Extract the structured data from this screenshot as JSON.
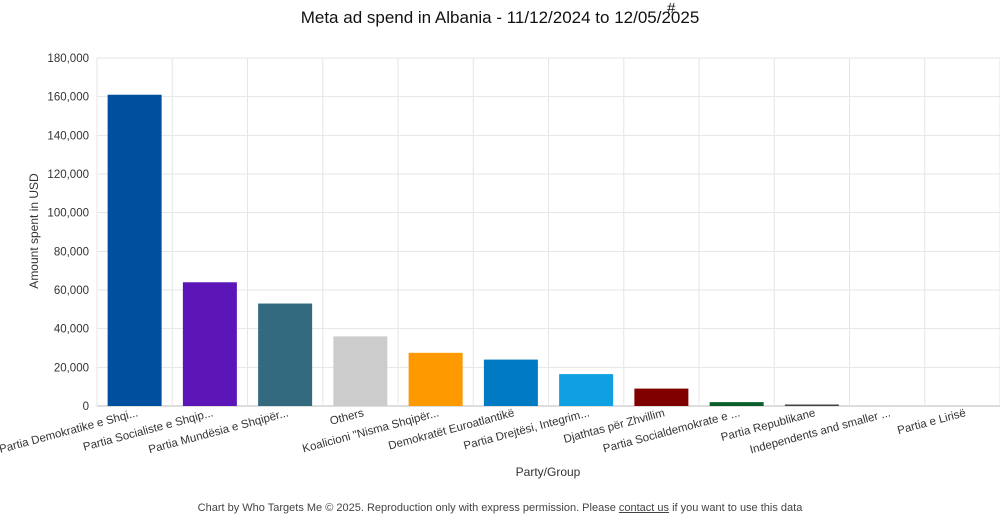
{
  "title": "Meta ad spend in Albania - 11/12/2024 to 12/05/2025",
  "title_mark": "#",
  "footer": {
    "before": "Chart by Who Targets Me © 2025. Reproduction only with express permission. Please ",
    "link": "contact us",
    "after": " if you want to use this data"
  },
  "chart_data": {
    "type": "bar",
    "title": "Meta ad spend in Albania - 11/12/2024 to 12/05/2025",
    "xlabel": "Party/Group",
    "ylabel": "Amount spent in USD",
    "ylim": [
      0,
      180000
    ],
    "yticks": [
      "0",
      "20,000",
      "40,000",
      "60,000",
      "80,000",
      "100,000",
      "120,000",
      "140,000",
      "160,000",
      "180,000"
    ],
    "yticks_values": [
      0,
      20000,
      40000,
      60000,
      80000,
      100000,
      120000,
      140000,
      160000,
      180000
    ],
    "grid": true,
    "legend": "none",
    "categories": [
      "Partia Demokratike e Shqi...",
      "Partia Socialiste e Shqip...",
      "Partia Mundësia e Shqipër...",
      "Others",
      "Koalicioni \"Nisma Shqipër...",
      "Demokratët Euroatlantikë",
      "Partia Drejtësi, Integrim...",
      "Djathtas për Zhvillim",
      "Partia Socialdemokrate e ...",
      "Partia Republikane",
      "Independents and smaller ...",
      "Partia e Lirisë"
    ],
    "values": [
      161000,
      64000,
      53000,
      36000,
      27500,
      24000,
      16500,
      9000,
      2000,
      700,
      0,
      0
    ],
    "colors": [
      "#004f9f",
      "#5c16b8",
      "#336a80",
      "#cccccc",
      "#ff9900",
      "#007ac2",
      "#0ea0e0",
      "#800000",
      "#0a5e2a",
      "#444444",
      "#888888",
      "#888888"
    ]
  }
}
